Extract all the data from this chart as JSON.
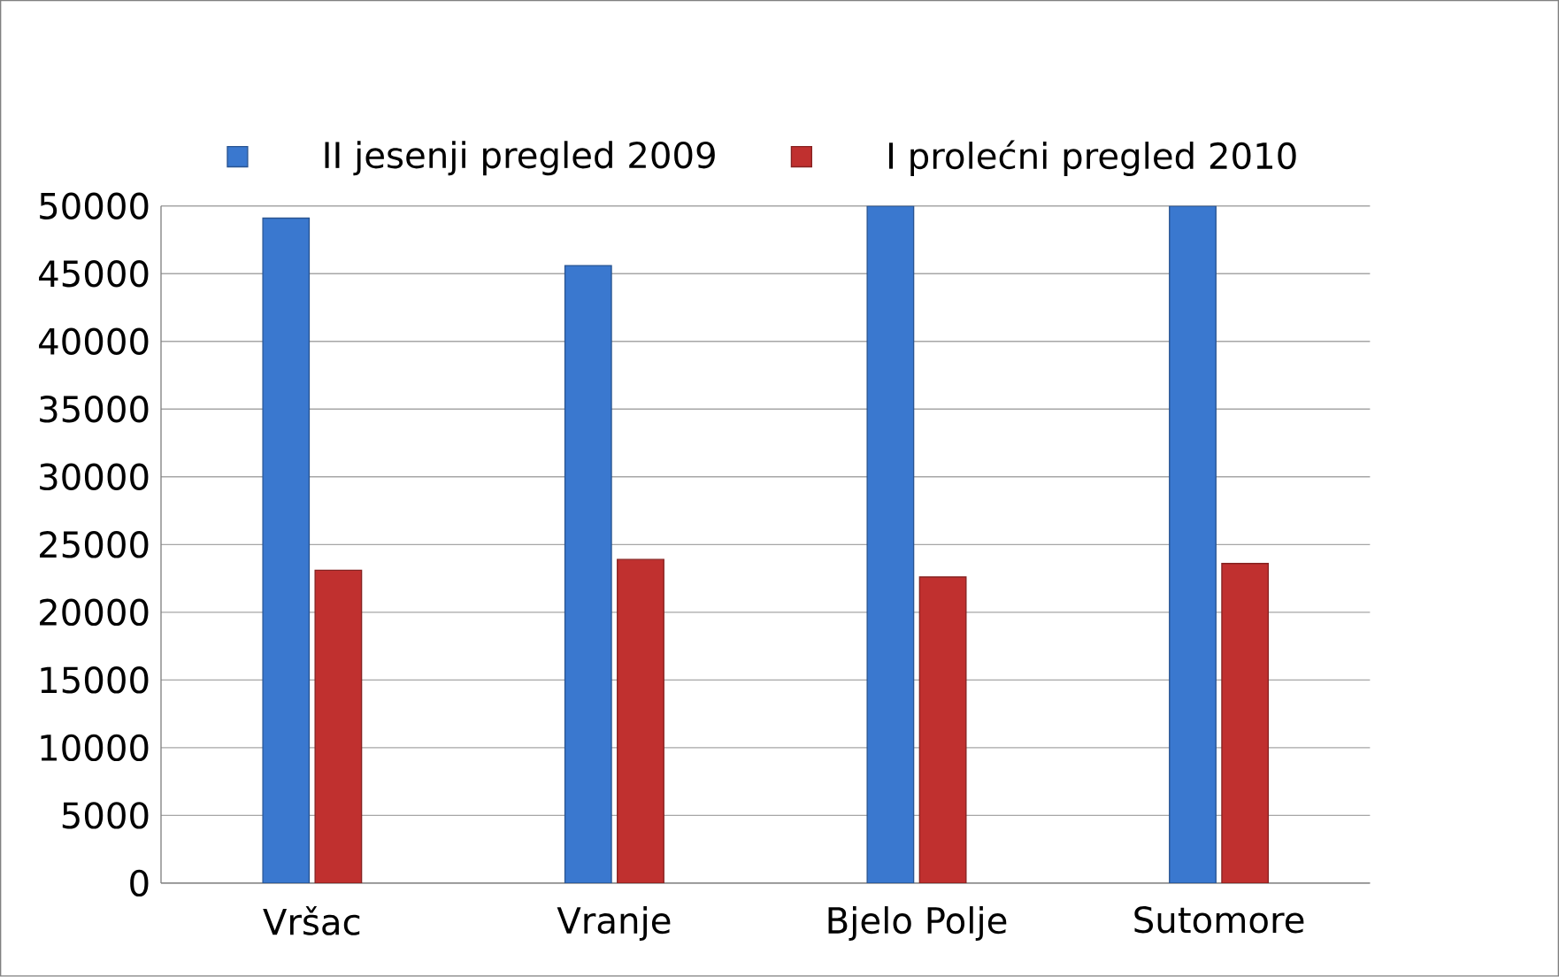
{
  "chart_data": {
    "type": "bar",
    "categories": [
      "Vršac",
      "Vranje",
      "Bjelo Polje",
      "Sutomore"
    ],
    "series": [
      {
        "name": "II jesenji pregled 2009",
        "color": "#3a78cf",
        "values": [
          49100,
          45600,
          50000,
          50000
        ]
      },
      {
        "name": "I prolećni pregled 2010",
        "color": "#c0302f",
        "values": [
          23100,
          23900,
          22600,
          23600
        ]
      }
    ],
    "ylim": [
      0,
      50000
    ],
    "yticks": [
      0,
      5000,
      10000,
      15000,
      20000,
      25000,
      30000,
      35000,
      40000,
      45000,
      50000
    ],
    "grid": "y",
    "legend": "top"
  }
}
